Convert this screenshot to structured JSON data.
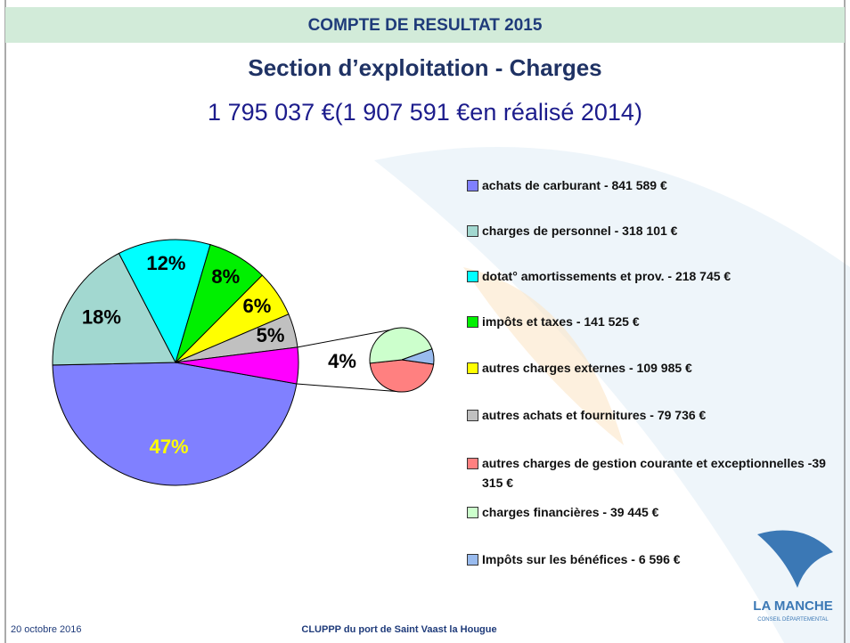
{
  "slide": {
    "banner": "COMPTE DE RESULTAT 2015",
    "date": "20 octobre 2016",
    "footer": "CLUPPP du port de Saint Vaast la Hougue",
    "logo": "LA MANCHE",
    "logo_sub": "CONSEIL DÉPARTEMENTAL"
  },
  "chart_data": {
    "type": "pie-of-pie",
    "title": "Section d’exploitation - Charges",
    "subtitle": "1 795 037 €(1 907 591 €en réalisé 2014)",
    "categories": [
      "achats de carburant - 841 589 €",
      "charges de personnel - 318 101 €",
      "dotat° amortissements et prov. - 218 745 €",
      "impôts et taxes - 141 525 €",
      "autres charges externes - 109 985 €",
      "autres achats et fournitures - 79 736 €",
      "autres charges de gestion courante et exceptionnelles -39 315 €",
      "charges financières - 39 445 €",
      "Impôts sur les bénéfices - 6 596 €"
    ],
    "values": [
      841589,
      318101,
      218745,
      141525,
      109985,
      79736,
      39315,
      39445,
      6596
    ],
    "colors": [
      "#8080ff",
      "#a2d8d0",
      "#00ffff",
      "#00f000",
      "#ffff00",
      "#c0c0c0",
      "#ff8080",
      "#ccffcc",
      "#99bbee"
    ],
    "split_last": 3,
    "other_color": "#ff00ff",
    "percent_labels": [
      {
        "value": 47,
        "label": "47%"
      },
      {
        "value": 18,
        "label": "18%"
      },
      {
        "value": 12,
        "label": "12%"
      },
      {
        "value": 8,
        "label": "8%"
      },
      {
        "value": 6,
        "label": "6%"
      },
      {
        "value": 5,
        "label": "5%"
      },
      {
        "value": 4,
        "label": "4%"
      }
    ]
  }
}
